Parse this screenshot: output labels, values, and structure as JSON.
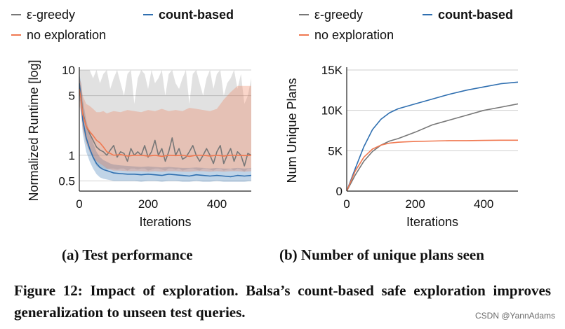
{
  "chart_data": [
    {
      "type": "line",
      "title": "",
      "xlabel": "Iterations",
      "ylabel": "Normalized Runtime [log]",
      "yscale": "log",
      "xlim": [
        0,
        500
      ],
      "ylim": [
        0.38,
        10
      ],
      "xticks": [
        0,
        200,
        400
      ],
      "xtick_labels": [
        "0",
        "200",
        "400"
      ],
      "yticks": [
        10,
        5,
        1,
        0.5
      ],
      "ytick_labels": [
        "10",
        "5",
        "1",
        "0.5"
      ],
      "grid": true,
      "legend": [
        "ε-greedy",
        "count-based",
        "no exploration"
      ],
      "legend_bold": [
        false,
        true,
        false
      ],
      "legend_position": "top",
      "series": [
        {
          "name": "ε-greedy",
          "color": "#777777",
          "x": [
            0,
            5,
            10,
            20,
            30,
            40,
            50,
            60,
            70,
            80,
            90,
            100,
            110,
            120,
            130,
            140,
            150,
            160,
            170,
            180,
            190,
            200,
            210,
            220,
            230,
            240,
            250,
            260,
            270,
            280,
            290,
            300,
            310,
            320,
            330,
            340,
            350,
            360,
            370,
            380,
            390,
            400,
            410,
            420,
            430,
            440,
            450,
            460,
            470,
            480,
            490,
            500
          ],
          "y": [
            7,
            5,
            3.2,
            2.2,
            1.8,
            1.5,
            1.25,
            1.15,
            1.1,
            1.0,
            1.15,
            1.3,
            0.95,
            1.1,
            1.05,
            0.85,
            1.2,
            1.0,
            1.1,
            1.0,
            1.3,
            0.95,
            1.1,
            1.5,
            1.0,
            1.2,
            0.85,
            1.1,
            1.6,
            1.0,
            1.2,
            0.9,
            0.95,
            1.1,
            1.3,
            1.0,
            0.85,
            1.0,
            1.2,
            1.0,
            0.8,
            1.1,
            1.3,
            0.8,
            1.0,
            1.2,
            0.85,
            1.1,
            1.0,
            0.75,
            1.05,
            1.0
          ],
          "band_low": [
            5,
            3.5,
            2.2,
            1.4,
            1.1,
            0.9,
            0.75,
            0.7,
            0.7,
            0.68,
            0.7,
            0.7,
            0.68,
            0.7,
            0.7,
            0.66,
            0.7,
            0.7,
            0.68,
            0.7,
            0.7,
            0.66,
            0.68,
            0.7,
            0.7,
            0.68,
            0.66,
            0.7,
            0.7,
            0.68,
            0.7,
            0.66,
            0.68,
            0.7,
            0.7,
            0.68,
            0.66,
            0.7,
            0.7,
            0.68,
            0.66,
            0.7,
            0.7,
            0.66,
            0.68,
            0.7,
            0.66,
            0.7,
            0.68,
            0.64,
            0.7,
            0.7
          ],
          "band_high": [
            10,
            10,
            10,
            10,
            10,
            8,
            10,
            7,
            9,
            10,
            6,
            8,
            10,
            7,
            5,
            9,
            10,
            4,
            8,
            10,
            9,
            6,
            10,
            7,
            8,
            10,
            5,
            9,
            10,
            7,
            6,
            8,
            10,
            4,
            9,
            10,
            7,
            5,
            8,
            10,
            6,
            9,
            10,
            5,
            7,
            8,
            10,
            6,
            9,
            4,
            5,
            8
          ]
        },
        {
          "name": "count-based",
          "color": "#2f6fb0",
          "x": [
            0,
            5,
            10,
            20,
            30,
            40,
            50,
            60,
            70,
            80,
            90,
            100,
            120,
            140,
            160,
            180,
            200,
            220,
            240,
            260,
            280,
            300,
            320,
            340,
            360,
            380,
            400,
            420,
            440,
            460,
            480,
            500
          ],
          "y": [
            7,
            4.5,
            2.6,
            1.6,
            1.2,
            0.95,
            0.8,
            0.72,
            0.68,
            0.66,
            0.64,
            0.62,
            0.61,
            0.6,
            0.6,
            0.59,
            0.6,
            0.59,
            0.58,
            0.6,
            0.59,
            0.58,
            0.57,
            0.59,
            0.58,
            0.57,
            0.58,
            0.57,
            0.56,
            0.58,
            0.57,
            0.58
          ],
          "band_low": [
            5,
            3.2,
            1.8,
            1.1,
            0.85,
            0.7,
            0.6,
            0.55,
            0.53,
            0.52,
            0.51,
            0.5,
            0.5,
            0.5,
            0.5,
            0.49,
            0.5,
            0.5,
            0.49,
            0.5,
            0.5,
            0.49,
            0.49,
            0.5,
            0.49,
            0.49,
            0.5,
            0.49,
            0.49,
            0.49,
            0.49,
            0.5
          ],
          "band_high": [
            9,
            7,
            4.5,
            2.6,
            1.8,
            1.4,
            1.1,
            0.95,
            0.88,
            0.84,
            0.8,
            0.78,
            0.76,
            0.75,
            0.74,
            0.73,
            0.74,
            0.73,
            0.72,
            0.73,
            0.72,
            0.71,
            0.71,
            0.72,
            0.71,
            0.7,
            0.71,
            0.7,
            0.7,
            0.71,
            0.7,
            0.71
          ]
        },
        {
          "name": "no exploration",
          "color": "#f07850",
          "x": [
            0,
            5,
            10,
            20,
            30,
            40,
            50,
            60,
            70,
            80,
            90,
            100,
            120,
            140,
            160,
            180,
            200,
            220,
            240,
            260,
            280,
            300,
            320,
            340,
            360,
            380,
            400,
            420,
            440,
            460,
            480,
            500
          ],
          "y": [
            6,
            4.5,
            3,
            2.2,
            1.9,
            1.7,
            1.5,
            1.4,
            1.25,
            1.1,
            1.05,
            1.0,
            1.02,
            0.98,
            1.0,
            1.0,
            0.98,
            1.0,
            0.97,
            1.0,
            0.99,
            1.0,
            0.97,
            1.0,
            1.0,
            0.98,
            1.0,
            0.98,
            1.0,
            1.0,
            0.99,
            1.0
          ],
          "band_low": [
            4,
            3,
            2,
            1.4,
            1.1,
            0.95,
            0.85,
            0.8,
            0.75,
            0.7,
            0.68,
            0.66,
            0.66,
            0.65,
            0.65,
            0.65,
            0.64,
            0.65,
            0.64,
            0.65,
            0.65,
            0.64,
            0.64,
            0.65,
            0.65,
            0.64,
            0.65,
            0.64,
            0.65,
            0.65,
            0.64,
            0.65
          ],
          "band_high": [
            8,
            7,
            5,
            4,
            3.8,
            3.5,
            3.2,
            3.2,
            3.3,
            3.1,
            3.2,
            3.3,
            3.2,
            3.4,
            3.3,
            3.2,
            3.4,
            3.3,
            3.5,
            3.3,
            3.4,
            3.3,
            3.6,
            3.5,
            3.4,
            3.3,
            3.5,
            4.5,
            5.5,
            6.5,
            6.5,
            6.5
          ]
        }
      ]
    },
    {
      "type": "line",
      "title": "",
      "xlabel": "Iterations",
      "ylabel": "Num Unique Plans",
      "xlim": [
        0,
        500
      ],
      "ylim": [
        0,
        15000
      ],
      "xticks": [
        0,
        200,
        400
      ],
      "xtick_labels": [
        "0",
        "200",
        "400"
      ],
      "yticks": [
        0,
        5000,
        10000,
        15000
      ],
      "ytick_labels": [
        "0",
        "5K",
        "10K",
        "15K"
      ],
      "grid": true,
      "legend": [
        "ε-greedy",
        "count-based",
        "no exploration"
      ],
      "legend_bold": [
        false,
        true,
        false
      ],
      "legend_position": "top",
      "series": [
        {
          "name": "ε-greedy",
          "color": "#777777",
          "x": [
            0,
            25,
            50,
            75,
            100,
            125,
            150,
            175,
            200,
            250,
            300,
            350,
            400,
            450,
            500
          ],
          "y": [
            0,
            2000,
            3700,
            4900,
            5700,
            6200,
            6500,
            6900,
            7300,
            8200,
            8800,
            9400,
            10000,
            10400,
            10800
          ]
        },
        {
          "name": "count-based",
          "color": "#2f6fb0",
          "x": [
            0,
            25,
            50,
            75,
            100,
            125,
            150,
            175,
            200,
            250,
            300,
            350,
            400,
            450,
            500
          ],
          "y": [
            0,
            2800,
            5500,
            7600,
            8900,
            9700,
            10200,
            10500,
            10800,
            11400,
            12000,
            12500,
            12900,
            13300,
            13500
          ]
        },
        {
          "name": "no exploration",
          "color": "#f07850",
          "x": [
            0,
            25,
            50,
            75,
            100,
            125,
            150,
            175,
            200,
            250,
            300,
            350,
            400,
            450,
            500
          ],
          "y": [
            0,
            2500,
            4200,
            5200,
            5700,
            5950,
            6050,
            6100,
            6150,
            6200,
            6250,
            6250,
            6280,
            6300,
            6300
          ]
        }
      ]
    }
  ],
  "captions": {
    "a": "(a) Test performance",
    "b": "(b) Number of unique plans seen",
    "figure": "Figure 12: Impact of exploration. Balsa’s count-based safe exploration improves generalization to unseen test queries."
  },
  "watermark": "CSDN @YannAdams"
}
